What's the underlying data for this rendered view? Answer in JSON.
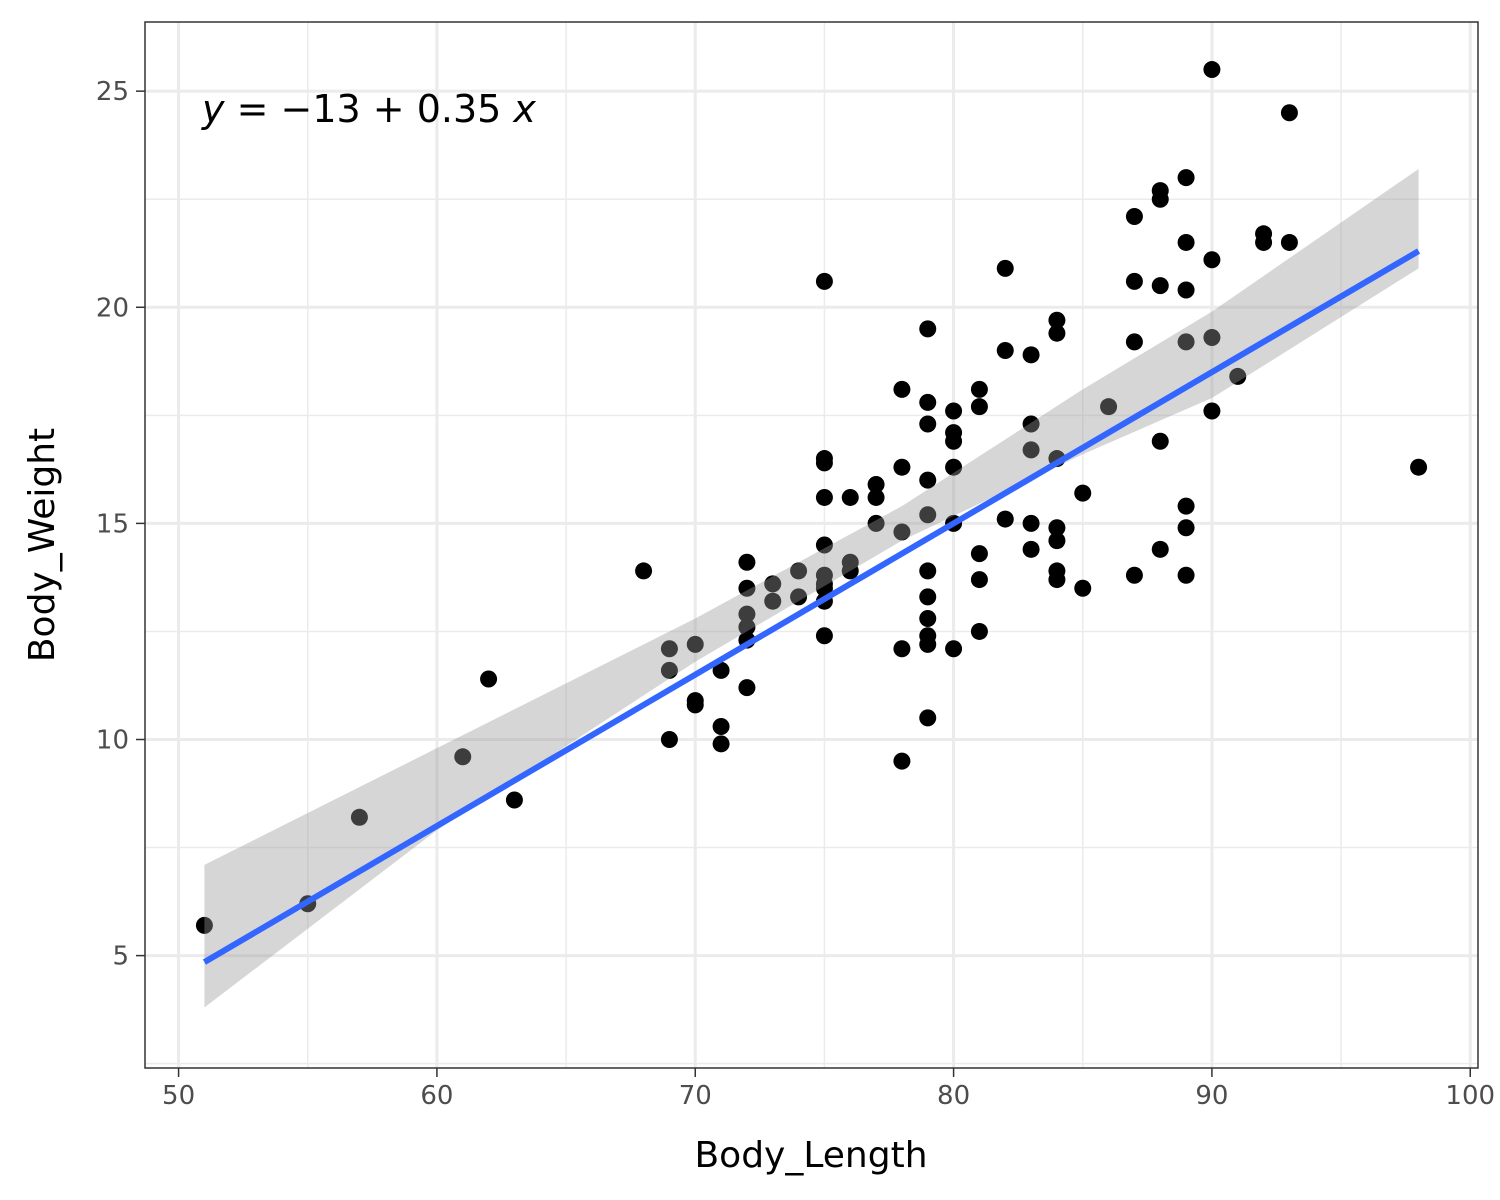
{
  "chart_data": {
    "type": "scatter",
    "title": "",
    "xlabel": "Body_Length",
    "ylabel": "Body_Weight",
    "xlim": [
      48.7,
      100.3
    ],
    "ylim": [
      2.4,
      26.6
    ],
    "x_ticks": [
      50,
      60,
      70,
      80,
      90,
      100
    ],
    "y_ticks": [
      5,
      10,
      15,
      20,
      25
    ],
    "x_tick_labels": [
      "50",
      "60",
      "70",
      "80",
      "90",
      "100"
    ],
    "y_tick_labels": [
      "5",
      "10",
      "15",
      "20",
      "25"
    ],
    "grid": true,
    "legend": "none",
    "equation": {
      "y_var": "y",
      "x_var": "x",
      "intercept": -13,
      "slope": 0.35,
      "text_body": " = −13 + 0.35 "
    },
    "regression": {
      "color": "#3366FF",
      "x_range": [
        51,
        98
      ],
      "intercept": -13.0,
      "slope": 0.35,
      "band": [
        {
          "x": 51,
          "lower": 3.8,
          "upper": 7.1
        },
        {
          "x": 60,
          "lower": 7.9,
          "upper": 9.8
        },
        {
          "x": 70,
          "lower": 11.8,
          "upper": 12.8
        },
        {
          "x": 78,
          "lower": 14.6,
          "upper": 15.4
        },
        {
          "x": 85,
          "lower": 16.6,
          "upper": 18.1
        },
        {
          "x": 90,
          "lower": 17.9,
          "upper": 19.9
        },
        {
          "x": 98,
          "lower": 20.9,
          "upper": 23.2
        }
      ]
    },
    "series": [
      {
        "color": "#000000",
        "points": [
          [
            51,
            5.7
          ],
          [
            55,
            6.2
          ],
          [
            57,
            8.2
          ],
          [
            61,
            9.6
          ],
          [
            62,
            11.4
          ],
          [
            63,
            8.6
          ],
          [
            68,
            13.9
          ],
          [
            69,
            12.1
          ],
          [
            69,
            11.6
          ],
          [
            69,
            10.0
          ],
          [
            70,
            12.2
          ],
          [
            70,
            10.9
          ],
          [
            70,
            10.8
          ],
          [
            71,
            11.6
          ],
          [
            71,
            10.3
          ],
          [
            71,
            9.9
          ],
          [
            72,
            14.1
          ],
          [
            72,
            13.5
          ],
          [
            72,
            12.9
          ],
          [
            72,
            12.6
          ],
          [
            72,
            12.3
          ],
          [
            72,
            11.2
          ],
          [
            73,
            13.6
          ],
          [
            73,
            13.2
          ],
          [
            74,
            13.9
          ],
          [
            74,
            13.3
          ],
          [
            75,
            20.6
          ],
          [
            75,
            16.5
          ],
          [
            75,
            16.4
          ],
          [
            75,
            15.6
          ],
          [
            75,
            14.5
          ],
          [
            75,
            13.8
          ],
          [
            75,
            13.6
          ],
          [
            75,
            13.5
          ],
          [
            75,
            13.2
          ],
          [
            75,
            12.4
          ],
          [
            76,
            15.6
          ],
          [
            76,
            14.1
          ],
          [
            76,
            13.9
          ],
          [
            77,
            15.9
          ],
          [
            77,
            15.6
          ],
          [
            77,
            15.0
          ],
          [
            78,
            18.1
          ],
          [
            78,
            16.3
          ],
          [
            78,
            14.8
          ],
          [
            78,
            12.1
          ],
          [
            78,
            9.5
          ],
          [
            79,
            19.5
          ],
          [
            79,
            17.8
          ],
          [
            79,
            17.3
          ],
          [
            79,
            16.0
          ],
          [
            79,
            15.2
          ],
          [
            79,
            13.9
          ],
          [
            79,
            13.3
          ],
          [
            79,
            12.8
          ],
          [
            79,
            12.4
          ],
          [
            79,
            12.2
          ],
          [
            79,
            10.5
          ],
          [
            80,
            17.6
          ],
          [
            80,
            17.1
          ],
          [
            80,
            16.9
          ],
          [
            80,
            16.3
          ],
          [
            80,
            15.0
          ],
          [
            80,
            12.1
          ],
          [
            81,
            18.1
          ],
          [
            81,
            17.7
          ],
          [
            81,
            14.3
          ],
          [
            81,
            13.7
          ],
          [
            81,
            12.5
          ],
          [
            82,
            20.9
          ],
          [
            82,
            19.0
          ],
          [
            82,
            15.1
          ],
          [
            83,
            18.9
          ],
          [
            83,
            17.3
          ],
          [
            83,
            16.7
          ],
          [
            83,
            15.0
          ],
          [
            83,
            14.4
          ],
          [
            84,
            19.7
          ],
          [
            84,
            19.4
          ],
          [
            84,
            16.5
          ],
          [
            84,
            14.9
          ],
          [
            84,
            14.6
          ],
          [
            84,
            13.9
          ],
          [
            84,
            13.7
          ],
          [
            85,
            15.7
          ],
          [
            85,
            13.5
          ],
          [
            86,
            17.7
          ],
          [
            87,
            22.1
          ],
          [
            87,
            20.6
          ],
          [
            87,
            19.2
          ],
          [
            87,
            13.8
          ],
          [
            88,
            22.7
          ],
          [
            88,
            22.5
          ],
          [
            88,
            20.5
          ],
          [
            88,
            16.9
          ],
          [
            88,
            14.4
          ],
          [
            89,
            23.0
          ],
          [
            89,
            21.5
          ],
          [
            89,
            20.4
          ],
          [
            89,
            19.2
          ],
          [
            89,
            15.4
          ],
          [
            89,
            14.9
          ],
          [
            89,
            13.8
          ],
          [
            90,
            25.5
          ],
          [
            90,
            21.1
          ],
          [
            90,
            19.3
          ],
          [
            90,
            17.6
          ],
          [
            91,
            18.4
          ],
          [
            92,
            21.7
          ],
          [
            92,
            21.5
          ],
          [
            93,
            24.5
          ],
          [
            93,
            21.5
          ],
          [
            98,
            16.3
          ]
        ]
      }
    ]
  }
}
